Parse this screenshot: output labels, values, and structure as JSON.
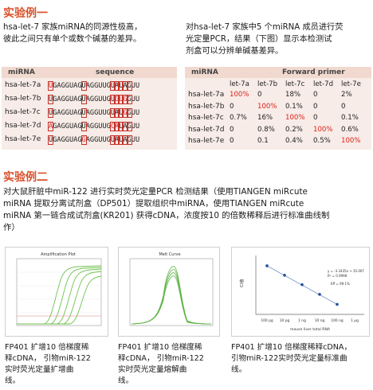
{
  "example1": {
    "title": "实验例一",
    "left_text": [
      "hsa-let-7 家族miRNA的同源性极高，",
      "彼此之间只有单个或数个碱基的差异。"
    ],
    "right_text": [
      "对hsa-let-7 家族中5 个miRNA 成员进行荧",
      "光定量PCR，结果（下图）显示本检测试",
      "剂盒可以分辨单碱基差异。"
    ],
    "seq_table": {
      "headers": [
        "miRNA",
        "sequence"
      ],
      "rows": [
        {
          "name": "hsa-let-7a",
          "seq": "UGAGGUAGUAGGUUGUAUAGUU"
        },
        {
          "name": "hsa-let-7b",
          "seq": "UGAGGUAGUAGGUUGUGUGGUU"
        },
        {
          "name": "hsa-let-7c",
          "seq": "UGAGGUAGUAGGUUGUAUGGUU"
        },
        {
          "name": "hsa-let-7d",
          "seq": "AGAGGUAGUAGGUUGCAUAGUU"
        },
        {
          "name": "hsa-let-7e",
          "seq": "UGAGGUAGGAGGUUGUAUAGUU"
        }
      ]
    },
    "fp_table": {
      "header_left": "miRNA",
      "header_right": "Forward primer",
      "columns": [
        "let-7a",
        "let-7b",
        "let-7c",
        "let-7d",
        "let-7e"
      ],
      "rows": [
        {
          "name": "hsa-let-7a",
          "values": [
            "100%",
            "0",
            "18%",
            "0",
            "2%"
          ]
        },
        {
          "name": "hsa-let-7b",
          "values": [
            "0",
            "100%",
            "0.1%",
            "0",
            "0"
          ]
        },
        {
          "name": "hsa-let-7c",
          "values": [
            "0.7%",
            "16%",
            "100%",
            "0",
            "0.1%"
          ]
        },
        {
          "name": "hsa-let-7d",
          "values": [
            "0",
            "0.8%",
            "0.2%",
            "100%",
            "0.6%"
          ]
        },
        {
          "name": "hsa-let-7e",
          "values": [
            "0",
            "0.1",
            "0.4%",
            "0.5%",
            "100%"
          ]
        }
      ]
    }
  },
  "example2": {
    "title": "实验例二",
    "text": [
      "对大鼠肝脏中miR-122 进行实时荧光定量PCR 检测结果（使用TIANGEN miRcute",
      "miRNA 提取分离试剂盒（DP501）提取组织中miRNA，使用TIANGEN miRcute",
      "miRNA 第一链合成试剂盒(KR201) 获得cDNA，浓度按10 的倍数稀释后进行标准曲线制",
      "作）"
    ],
    "panel1": {
      "title": "Amplification Plot",
      "caption": [
        "FP401 扩增10 倍梯度稀",
        "释cDNA， 引物miR-122",
        "实时荧光定量扩增曲",
        "线。"
      ]
    },
    "panel2": {
      "title": "Melt Curve",
      "caption": [
        "FP401 扩增10 倍梯度稀",
        "释cDNA， 引物miR-122",
        "实时荧光定量熔解曲",
        "线。"
      ]
    },
    "panel3": {
      "caption": [
        "FP401 扩增10 倍梯度稀释cDNA，",
        "引物miR-122实时荧光定量标准曲",
        "线。"
      ]
    }
  },
  "chart_data": {
    "type": "scatter",
    "title": "",
    "categories": [
      "100 pg",
      "10 pg",
      "1 ng",
      "10 ng",
      "100 ng",
      "1 μg"
    ],
    "xlabel": "mouse liver total RNA",
    "ylabel": "Ct值",
    "series": [
      {
        "values": [
          31.5,
          28.3,
          25.1,
          21.8,
          18.4
        ]
      }
    ],
    "annotations": [
      "y = -3.3435x + 35.007",
      "R² = 0.9998",
      "Eff = 99.1%"
    ],
    "colors": {
      "points": "#1f4e9c",
      "line": "#5a7fbf"
    }
  }
}
